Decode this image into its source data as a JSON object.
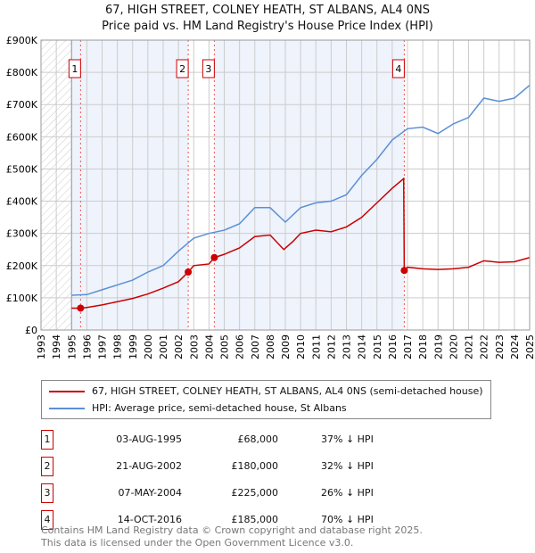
{
  "title": "67, HIGH STREET, COLNEY HEATH, ST ALBANS, AL4 0NS",
  "subtitle": "Price paid vs. HM Land Registry's House Price Index (HPI)",
  "chart_data": {
    "type": "line",
    "xlim": [
      1993,
      2025
    ],
    "ylim": [
      0,
      900000
    ],
    "x_ticks": [
      "1993",
      "1994",
      "1995",
      "1996",
      "1997",
      "1998",
      "1999",
      "2000",
      "2001",
      "2002",
      "2003",
      "2004",
      "2005",
      "2006",
      "2007",
      "2008",
      "2009",
      "2010",
      "2011",
      "2012",
      "2013",
      "2014",
      "2015",
      "2016",
      "2017",
      "2018",
      "2019",
      "2020",
      "2021",
      "2022",
      "2023",
      "2024",
      "2025"
    ],
    "y_ticks": [
      {
        "v": 0,
        "label": "£0"
      },
      {
        "v": 100000,
        "label": "£100K"
      },
      {
        "v": 200000,
        "label": "£200K"
      },
      {
        "v": 300000,
        "label": "£300K"
      },
      {
        "v": 400000,
        "label": "£400K"
      },
      {
        "v": 500000,
        "label": "£500K"
      },
      {
        "v": 600000,
        "label": "£600K"
      },
      {
        "v": 700000,
        "label": "£700K"
      },
      {
        "v": 800000,
        "label": "£800K"
      },
      {
        "v": 900000,
        "label": "£900K"
      }
    ],
    "series": [
      {
        "name": "67, HIGH STREET, COLNEY HEATH, ST ALBANS, AL4 0NS (semi-detached house)",
        "color": "#cc0000",
        "x": [
          1995.0,
          1995.6,
          1996,
          1997,
          1998,
          1999,
          2000,
          2001,
          2002,
          2002.64,
          2003,
          2004,
          2004.35,
          2005,
          2006,
          2007,
          2008,
          2008.9,
          2009.5,
          2010,
          2011,
          2012,
          2013,
          2014,
          2015,
          2016,
          2016.75,
          2016.79,
          2017,
          2018,
          2019,
          2020,
          2021,
          2022,
          2023,
          2024,
          2025
        ],
        "values": [
          68000,
          68000,
          70000,
          78000,
          88000,
          98000,
          112000,
          130000,
          150000,
          180000,
          200000,
          205000,
          225000,
          235000,
          255000,
          290000,
          295000,
          250000,
          275000,
          300000,
          310000,
          305000,
          320000,
          350000,
          395000,
          440000,
          470000,
          185000,
          195000,
          190000,
          188000,
          190000,
          195000,
          215000,
          210000,
          212000,
          225000
        ]
      },
      {
        "name": "HPI: Average price, semi-detached house, St Albans",
        "color": "#5b8fd6",
        "x": [
          1995,
          1996,
          1997,
          1998,
          1999,
          2000,
          2001,
          2002,
          2003,
          2004,
          2005,
          2006,
          2007,
          2008,
          2009,
          2010,
          2011,
          2012,
          2013,
          2014,
          2015,
          2016,
          2017,
          2018,
          2019,
          2020,
          2021,
          2022,
          2023,
          2024,
          2025
        ],
        "values": [
          108000,
          110000,
          125000,
          140000,
          155000,
          180000,
          200000,
          245000,
          285000,
          300000,
          310000,
          330000,
          380000,
          380000,
          335000,
          380000,
          395000,
          400000,
          420000,
          480000,
          530000,
          590000,
          625000,
          630000,
          610000,
          640000,
          660000,
          720000,
          710000,
          720000,
          760000
        ]
      }
    ],
    "sales": [
      {
        "n": "1",
        "x": 1995.59,
        "value": 68000
      },
      {
        "n": "2",
        "x": 2002.64,
        "value": 180000
      },
      {
        "n": "3",
        "x": 2004.35,
        "value": 225000
      },
      {
        "n": "4",
        "x": 2016.79,
        "value": 185000
      }
    ]
  },
  "table": [
    {
      "n": "1",
      "date": "03-AUG-1995",
      "price": "£68,000",
      "hpi": "37% ↓ HPI"
    },
    {
      "n": "2",
      "date": "21-AUG-2002",
      "price": "£180,000",
      "hpi": "32% ↓ HPI"
    },
    {
      "n": "3",
      "date": "07-MAY-2004",
      "price": "£225,000",
      "hpi": "26% ↓ HPI"
    },
    {
      "n": "4",
      "date": "14-OCT-2016",
      "price": "£185,000",
      "hpi": "70% ↓ HPI"
    }
  ],
  "footer": [
    "Contains HM Land Registry data © Crown copyright and database right 2025.",
    "This data is licensed under the Open Government Licence v3.0."
  ]
}
